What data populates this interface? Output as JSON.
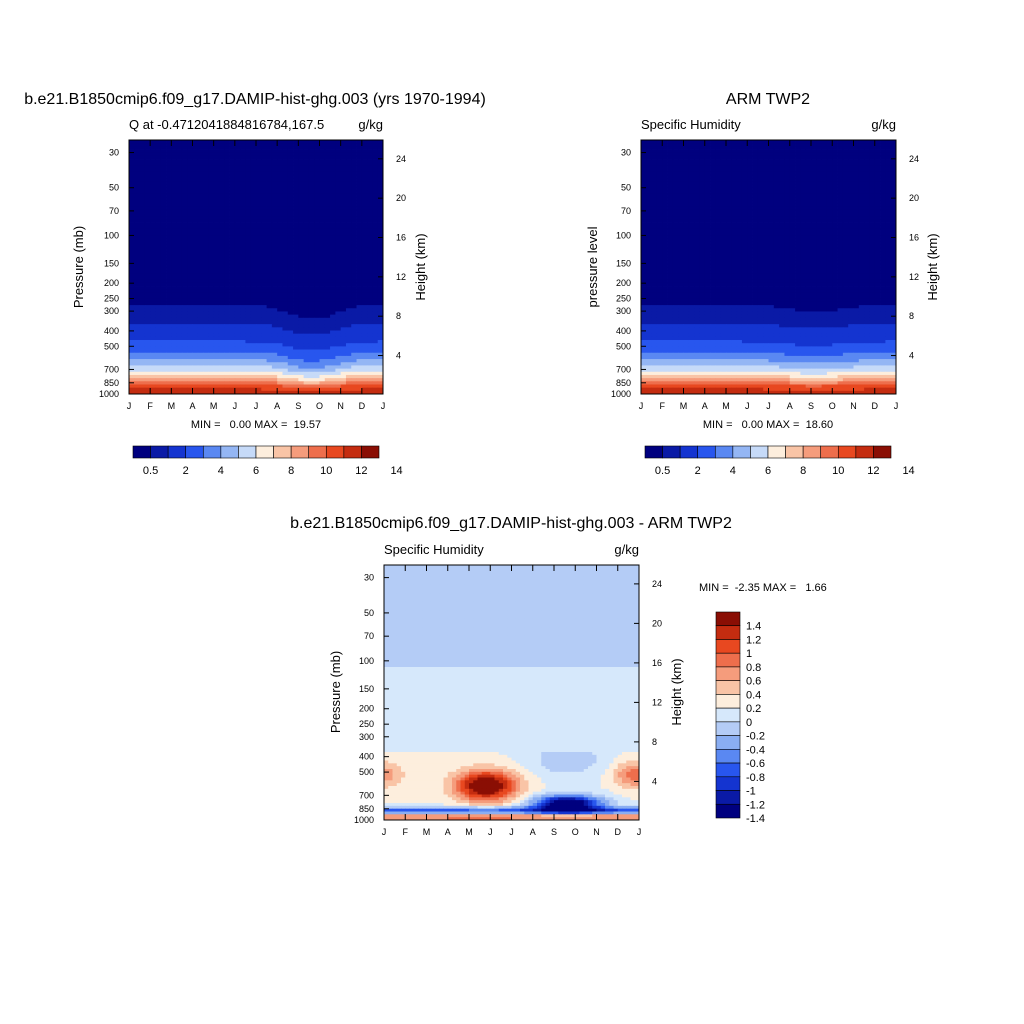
{
  "chart_data": [
    {
      "type": "heatmap",
      "title": "b.e21.B1850cmip6.f09_g17.DAMIP-hist-ghg.003 (yrs 1970-1994)",
      "subtitle_left": "Q at -0.4712041884816784,167.5",
      "subtitle_right": "g/kg",
      "ylabel": "Pressure (mb)",
      "y2label": "Height (km)",
      "x_ticks": [
        "J",
        "F",
        "M",
        "A",
        "M",
        "J",
        "J",
        "A",
        "S",
        "O",
        "N",
        "D",
        "J"
      ],
      "y_ticks": [
        30,
        50,
        70,
        100,
        150,
        200,
        250,
        300,
        400,
        500,
        700,
        850,
        1000
      ],
      "y2_ticks": [
        24,
        20,
        16,
        12,
        8,
        4
      ],
      "ylim": [
        1000,
        25
      ],
      "stats": "MIN =   0.00 MAX =  19.57",
      "colorbar_labels": [
        "0.5",
        "2",
        "4",
        "6",
        "8",
        "10",
        "12",
        "14"
      ],
      "colorbar_colors": [
        "#00007f",
        "#0a1aa6",
        "#1434d0",
        "#2856ee",
        "#5a88f2",
        "#94b6f4",
        "#c6daf8",
        "#fdeedd",
        "#f9c4a6",
        "#f59c7c",
        "#ee6e4c",
        "#e84820",
        "#c42c10",
        "#8a0e04"
      ]
    },
    {
      "type": "heatmap",
      "title": "ARM TWP2",
      "subtitle_left": "Specific Humidity",
      "subtitle_right": "g/kg",
      "ylabel": "pressure level",
      "y2label": "Height (km)",
      "x_ticks": [
        "J",
        "F",
        "M",
        "A",
        "M",
        "J",
        "J",
        "A",
        "S",
        "O",
        "N",
        "D",
        "J"
      ],
      "y_ticks": [
        30,
        50,
        70,
        100,
        150,
        200,
        250,
        300,
        400,
        500,
        700,
        850,
        1000
      ],
      "y2_ticks": [
        24,
        20,
        16,
        12,
        8,
        4
      ],
      "ylim": [
        1000,
        25
      ],
      "stats": "MIN =   0.00 MAX =  18.60",
      "colorbar_labels": [
        "0.5",
        "2",
        "4",
        "6",
        "8",
        "10",
        "12",
        "14"
      ],
      "colorbar_colors": [
        "#00007f",
        "#0a1aa6",
        "#1434d0",
        "#2856ee",
        "#5a88f2",
        "#94b6f4",
        "#c6daf8",
        "#fdeedd",
        "#f9c4a6",
        "#f59c7c",
        "#ee6e4c",
        "#e84820",
        "#c42c10",
        "#8a0e04"
      ]
    },
    {
      "type": "heatmap",
      "title": "b.e21.B1850cmip6.f09_g17.DAMIP-hist-ghg.003 - ARM TWP2",
      "subtitle_left": "Specific Humidity",
      "subtitle_right": "g/kg",
      "ylabel": "Pressure (mb)",
      "y2label": "Height (km)",
      "x_ticks": [
        "J",
        "F",
        "M",
        "A",
        "M",
        "J",
        "J",
        "A",
        "S",
        "O",
        "N",
        "D",
        "J"
      ],
      "y_ticks": [
        30,
        50,
        70,
        100,
        150,
        200,
        250,
        300,
        400,
        500,
        700,
        850,
        1000
      ],
      "y2_ticks": [
        24,
        20,
        16,
        12,
        8,
        4
      ],
      "ylim": [
        1000,
        25
      ],
      "stats": "MIN =  -2.35 MAX =   1.66",
      "colorbar_labels": [
        "1.4",
        "1.2",
        "1",
        "0.8",
        "0.6",
        "0.4",
        "0.2",
        "0",
        "-0.2",
        "-0.4",
        "-0.6",
        "-0.8",
        "-1",
        "-1.2",
        "-1.4"
      ],
      "colorbar_colors": [
        "#8a0e04",
        "#c42c10",
        "#e84820",
        "#ee6e4c",
        "#f59c7c",
        "#f9c4a6",
        "#fdeedd",
        "#d6e8fb",
        "#b4ccf6",
        "#8aaef2",
        "#5a88f2",
        "#2856ee",
        "#1434d0",
        "#0a1aa6",
        "#00007f"
      ]
    }
  ]
}
